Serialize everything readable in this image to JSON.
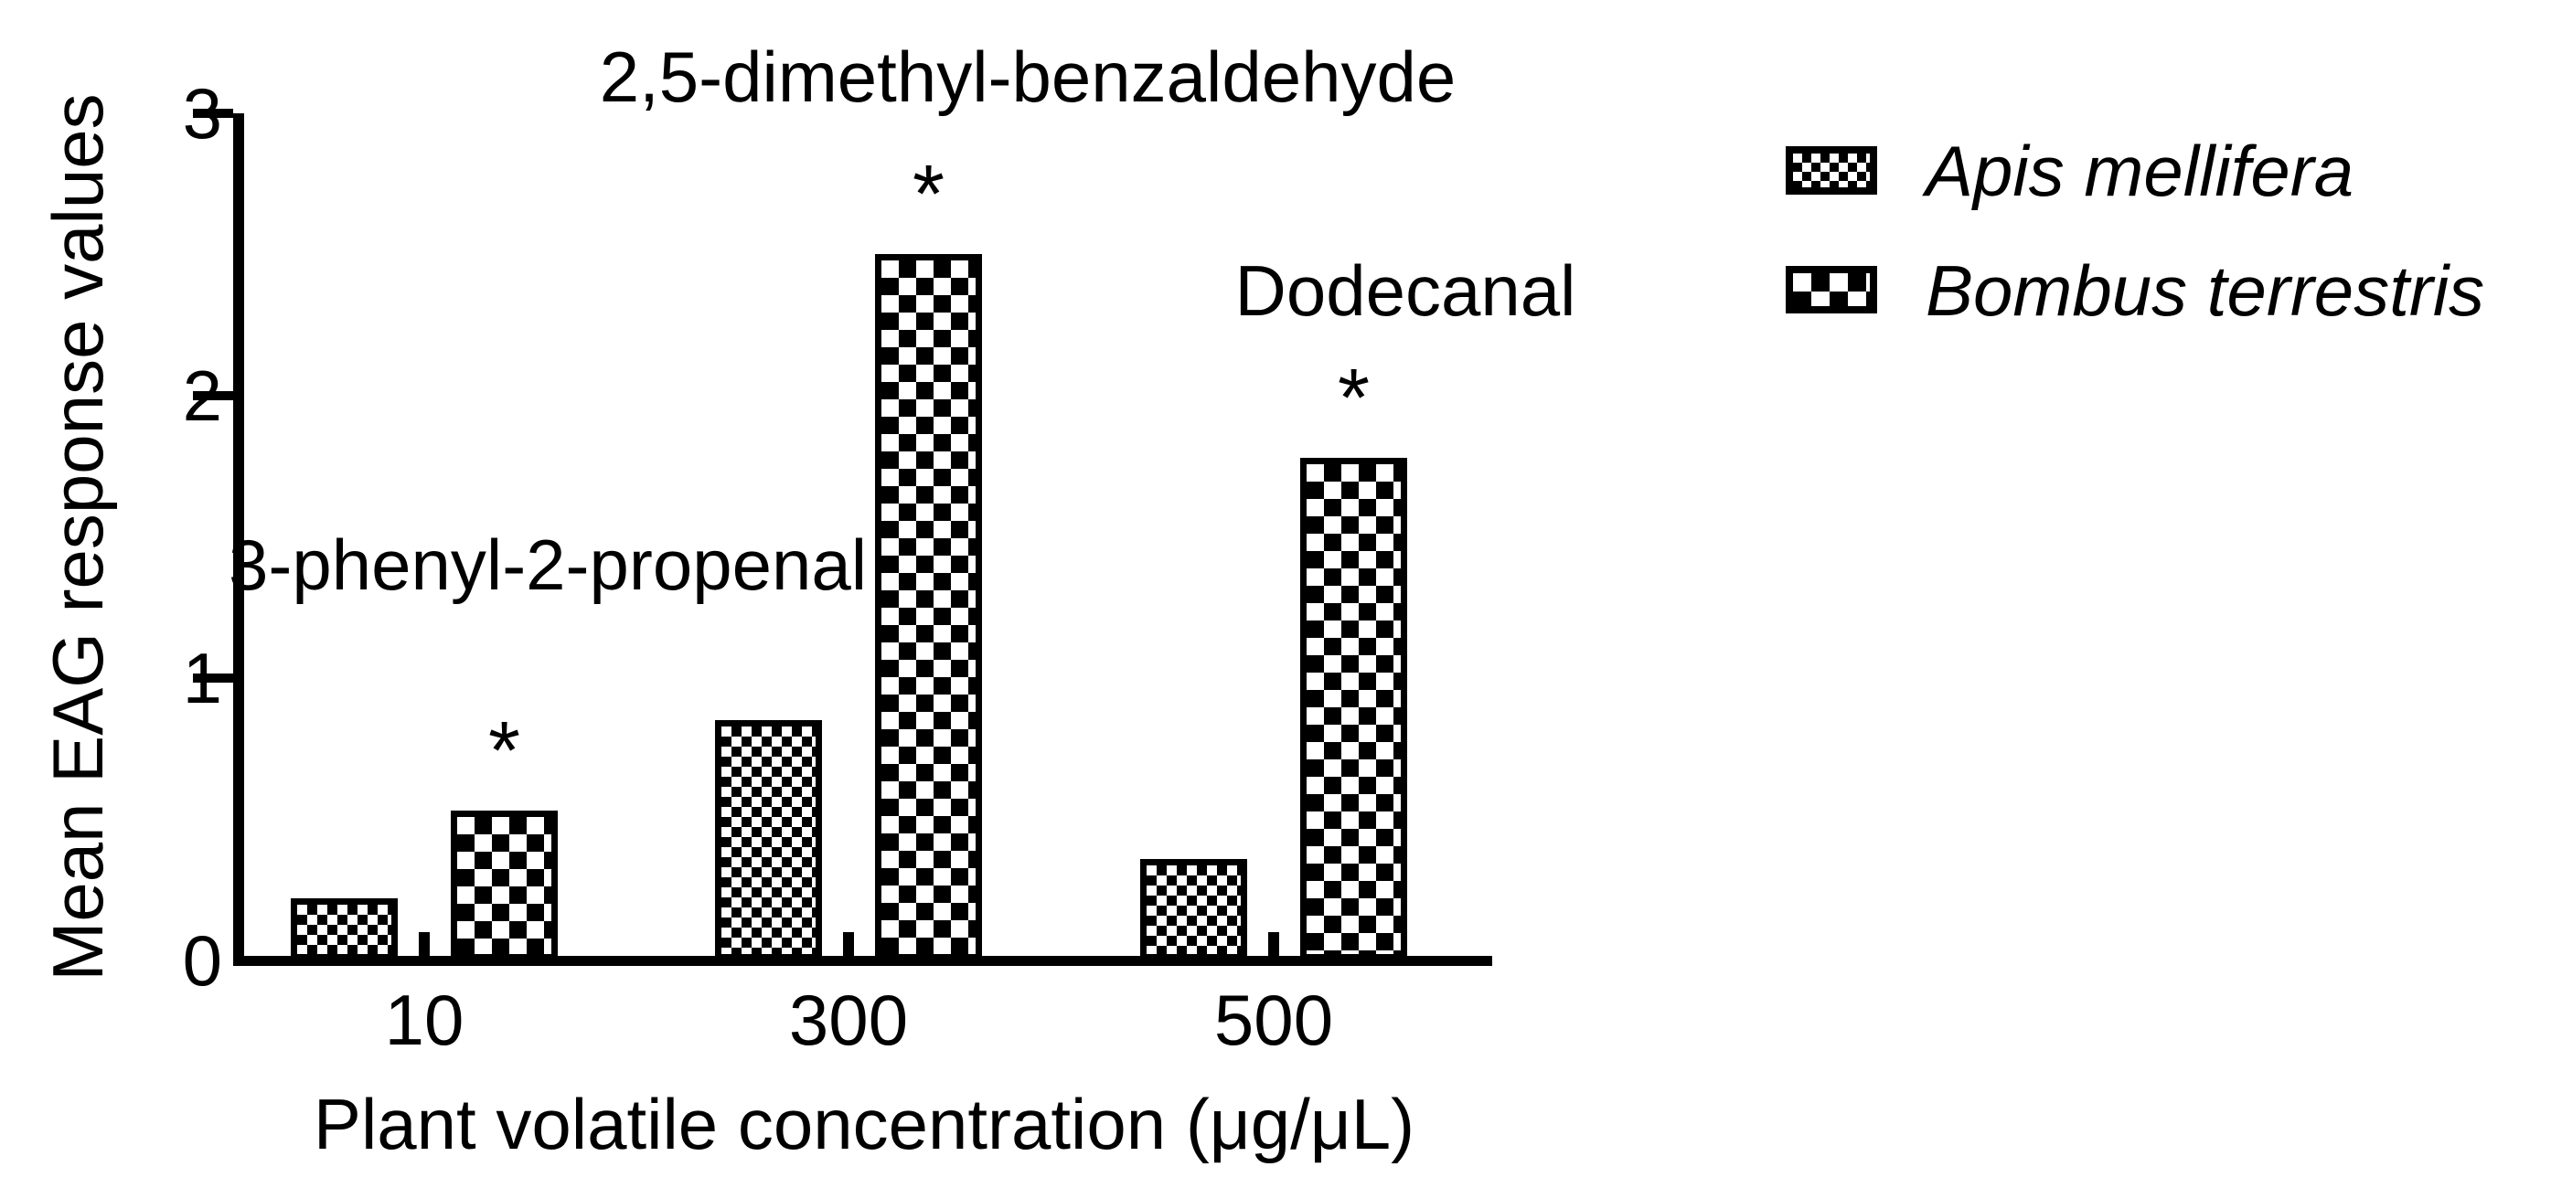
{
  "figure": {
    "background": "#ffffff",
    "ink_color": "#000000"
  },
  "chart_data": {
    "type": "bar",
    "title": "",
    "xlabel": "Plant volatile concentration (μg/μL)",
    "ylabel": "Mean EAG response values",
    "categories": [
      "10",
      "300",
      "500"
    ],
    "series": [
      {
        "name": "Apis mellifera",
        "pattern": "fine-checkerboard",
        "values": [
          0.22,
          0.85,
          0.36
        ]
      },
      {
        "name": "Bombus terrestris",
        "pattern": "coarse-checkerboard",
        "values": [
          0.53,
          2.5,
          1.78
        ]
      }
    ],
    "ylim": [
      0,
      3
    ],
    "yticks": [
      0,
      1,
      2,
      3
    ],
    "grid": false,
    "legend_position": "right",
    "significance": [
      {
        "group": "10",
        "series": "Bombus terrestris",
        "symbol": "*"
      },
      {
        "group": "300",
        "series": "Bombus terrestris",
        "symbol": "*"
      },
      {
        "group": "500",
        "series": "Bombus terrestris",
        "symbol": "*"
      }
    ],
    "annotations": [
      {
        "text": "3-phenyl-2-propenal",
        "group": "10"
      },
      {
        "text": "2,5-dimethyl-benzaldehyde",
        "group": "300"
      },
      {
        "text": "Dodecanal",
        "group": "500"
      }
    ]
  },
  "legend": {
    "items": [
      {
        "label": "Apis mellifera",
        "swatch": "fine-checkerboard-icon"
      },
      {
        "label": "Bombus terrestris",
        "swatch": "coarse-checkerboard-icon"
      }
    ]
  }
}
